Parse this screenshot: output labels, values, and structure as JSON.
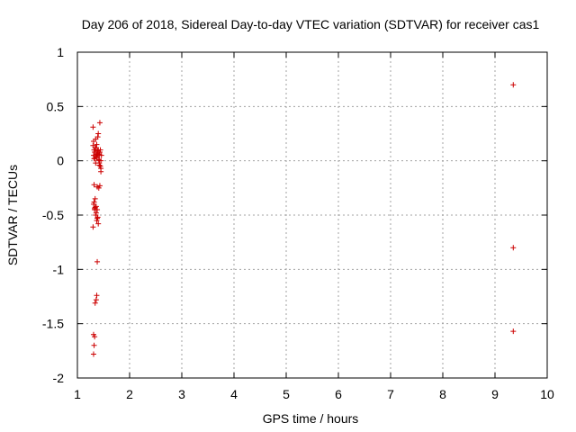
{
  "chart_data": {
    "type": "scatter",
    "title": "Day 206 of 2018, Sidereal Day-to-day VTEC variation (SDTVAR) for receiver cas1",
    "xlabel": "GPS time / hours",
    "ylabel": "SDTVAR / TECUs",
    "xlim": [
      1,
      10
    ],
    "ylim": [
      -2,
      1
    ],
    "xticks": [
      1,
      2,
      3,
      4,
      5,
      6,
      7,
      8,
      9,
      10
    ],
    "xtick_labels": [
      "1",
      "2",
      "3",
      "4",
      "5",
      "6",
      "7",
      "8",
      "9",
      "10"
    ],
    "yticks": [
      1,
      0.5,
      0,
      -0.5,
      -1,
      -1.5,
      -2
    ],
    "ytick_labels": [
      "1",
      "0.5",
      "0",
      "-0.5",
      "-1",
      "-1.5",
      "-2"
    ],
    "grid": true,
    "marker": "plus",
    "color": "#cc0000",
    "series": [
      {
        "name": "SDTVAR",
        "x": [
          1.3,
          1.3,
          1.31,
          1.31,
          1.32,
          1.32,
          1.33,
          1.33,
          1.34,
          1.34,
          1.35,
          1.35,
          1.36,
          1.36,
          1.37,
          1.37,
          1.38,
          1.38,
          1.39,
          1.39,
          1.4,
          1.4,
          1.41,
          1.41,
          1.42,
          1.42,
          1.43,
          1.43,
          1.44,
          1.44,
          1.45,
          1.45,
          1.46,
          1.31,
          1.33,
          1.35,
          1.37,
          1.39,
          1.41,
          1.43,
          1.32,
          1.34,
          1.36,
          1.38,
          1.4,
          1.3,
          1.33,
          1.36,
          1.39,
          1.42,
          1.45,
          1.32,
          1.35,
          1.38,
          1.37,
          1.36,
          1.31,
          1.33,
          1.32,
          1.31,
          1.34,
          1.38,
          1.42,
          9.35,
          9.35,
          9.35
        ],
        "y": [
          0.31,
          0.14,
          0.18,
          0.05,
          0.1,
          -0.22,
          0.08,
          0.02,
          0.12,
          -0.35,
          0.2,
          0.04,
          0.1,
          -0.42,
          0.15,
          0.06,
          0.03,
          -0.45,
          0.22,
          0.09,
          0.25,
          0.1,
          0.05,
          0.01,
          0.0,
          -0.02,
          0.35,
          0.08,
          0.1,
          -0.05,
          -0.1,
          0.0,
          0.05,
          -0.4,
          -0.45,
          -0.5,
          -0.55,
          -0.52,
          -0.25,
          -0.23,
          -0.38,
          -0.43,
          -0.48,
          -0.53,
          -0.58,
          -0.61,
          -0.44,
          0.12,
          0.07,
          0.06,
          -0.07,
          0.02,
          -0.02,
          -0.24,
          -1.24,
          -1.28,
          -1.6,
          -1.62,
          -1.7,
          -1.78,
          -1.31,
          -0.93,
          -0.04,
          0.7,
          -0.8,
          -1.57
        ]
      }
    ]
  }
}
